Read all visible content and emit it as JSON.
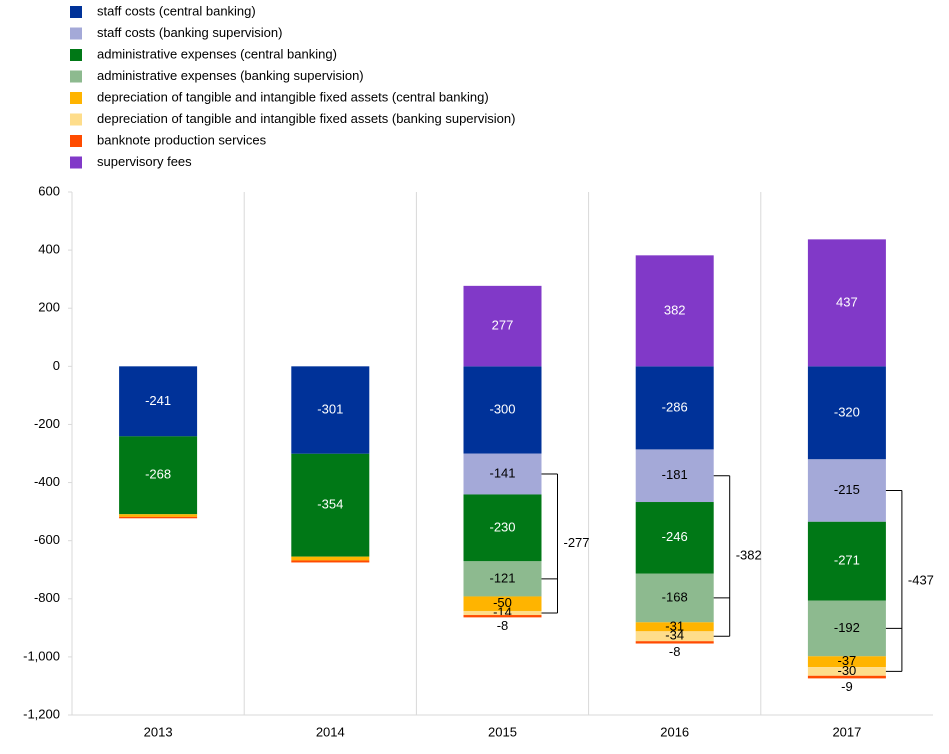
{
  "chart_data": {
    "type": "stacked_bar",
    "categories": [
      "2013",
      "2014",
      "2015",
      "2016",
      "2017"
    ],
    "series": [
      {
        "name": "staff costs (central banking)",
        "color": "#003299",
        "values": [
          -241,
          -301,
          -300,
          -286,
          -320
        ],
        "value_labels": [
          "-241",
          "-301",
          "-300",
          "-286",
          "-320"
        ]
      },
      {
        "name": "staff costs (banking supervision)",
        "color": "#a4a9d8",
        "values": [
          null,
          null,
          -141,
          -181,
          -215
        ],
        "value_labels": [
          null,
          null,
          "-141",
          "-181",
          "-215"
        ]
      },
      {
        "name": "administrative expenses (central banking)",
        "color": "#007816",
        "values": [
          -268,
          -354,
          -230,
          -246,
          -271
        ],
        "value_labels": [
          "-268",
          "-354",
          "-230",
          "-246",
          "-271"
        ]
      },
      {
        "name": "administrative expenses (banking supervision)",
        "color": "#8dba8f",
        "values": [
          null,
          null,
          -121,
          -168,
          -192
        ],
        "value_labels": [
          null,
          null,
          "-121",
          "-168",
          "-192"
        ]
      },
      {
        "name": "depreciation of tangible and intangible fixed assets (central banking)",
        "color": "#ffb400",
        "values": [
          -9,
          -13,
          -50,
          -31,
          -37
        ],
        "value_labels": [
          null,
          null,
          "-50",
          "-31",
          "-37"
        ]
      },
      {
        "name": "depreciation of tangible and intangible fixed assets (banking supervision)",
        "color": "#fedd8b",
        "values": [
          null,
          null,
          -14,
          -34,
          -30
        ],
        "value_labels": [
          null,
          null,
          "-14",
          "-34",
          "-30"
        ]
      },
      {
        "name": "banknote production services",
        "color": "#ff4b00",
        "values": [
          -5,
          -7,
          -8,
          -8,
          -9
        ],
        "value_labels": [
          null,
          null,
          "-8",
          "-8",
          "-9"
        ]
      },
      {
        "name": "supervisory fees",
        "color": "#8139c8",
        "values": [
          null,
          null,
          277,
          382,
          437
        ],
        "value_labels": [
          null,
          null,
          "277",
          "382",
          "437"
        ]
      }
    ],
    "annotations": [
      {
        "category": "2015",
        "value": -277
      },
      {
        "category": "2016",
        "value": -382
      },
      {
        "category": "2017",
        "value": -437
      }
    ],
    "ylim": [
      -1200,
      600
    ],
    "yticks": [
      {
        "value": -1200,
        "label": "-1,200"
      },
      {
        "value": -1000,
        "label": "-1,000"
      },
      -800,
      -600,
      -400,
      -200,
      0,
      200,
      400,
      600
    ],
    "grid": "vertical-separators"
  }
}
